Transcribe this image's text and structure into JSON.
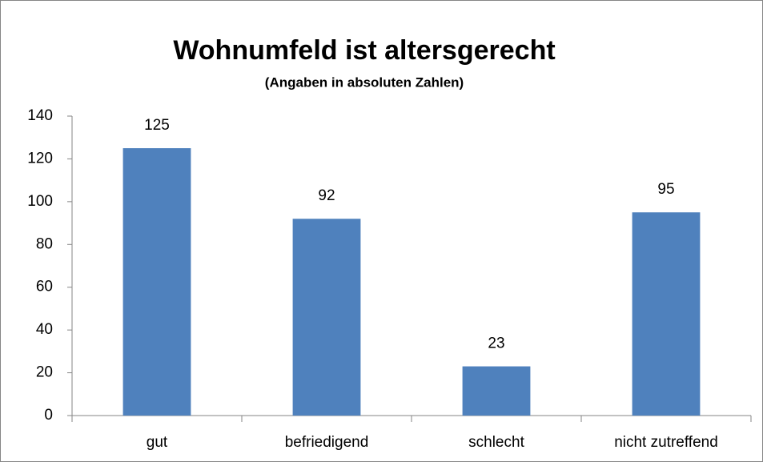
{
  "chart_data": {
    "type": "bar",
    "title": "Wohnumfeld ist altersgerecht",
    "subtitle": "(Angaben in absoluten Zahlen)",
    "categories": [
      "gut",
      "befriedigend",
      "schlecht",
      "nicht zutreffend"
    ],
    "values": [
      125,
      92,
      23,
      95
    ],
    "color": "#4f81bd",
    "ylim": [
      0,
      140
    ],
    "yticks": [
      0,
      20,
      40,
      60,
      80,
      100,
      120,
      140
    ],
    "grid": false
  }
}
